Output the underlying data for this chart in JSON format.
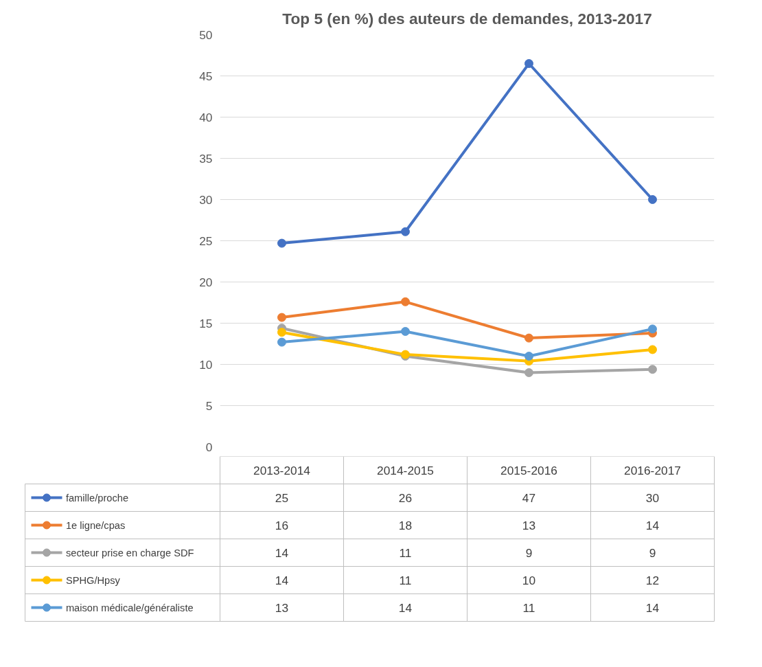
{
  "chart_data": {
    "type": "line",
    "title": "Top 5 (en %) des auteurs de demandes, 2013-2017",
    "categories": [
      "2013-2014",
      "2014-2015",
      "2015-2016",
      "2016-2017"
    ],
    "series": [
      {
        "name": "famille/proche",
        "color": "#4472c4",
        "values": [
          24.7,
          26.1,
          46.5,
          30.0
        ],
        "value_labels": [
          "25",
          "26",
          "47",
          "30"
        ]
      },
      {
        "name": "1e ligne/cpas",
        "color": "#ed7d31",
        "values": [
          15.7,
          17.6,
          13.2,
          13.8
        ],
        "value_labels": [
          "16",
          "18",
          "13",
          "14"
        ]
      },
      {
        "name": "secteur prise en charge SDF",
        "color": "#a5a5a5",
        "values": [
          14.4,
          11.0,
          9.0,
          9.4
        ],
        "value_labels": [
          "14",
          "11",
          "9",
          "9"
        ]
      },
      {
        "name": "SPHG/Hpsy",
        "color": "#ffc000",
        "values": [
          13.9,
          11.2,
          10.4,
          11.8
        ],
        "value_labels": [
          "14",
          "11",
          "10",
          "12"
        ]
      },
      {
        "name": "maison médicale/généraliste",
        "color": "#5b9bd5",
        "values": [
          12.7,
          14.0,
          11.0,
          14.3
        ],
        "value_labels": [
          "13",
          "14",
          "11",
          "14"
        ]
      }
    ],
    "ylim": [
      0,
      50
    ],
    "yticks": [
      0,
      5,
      10,
      15,
      20,
      25,
      30,
      35,
      40,
      45,
      50
    ],
    "grid": "y",
    "legend": "bottom",
    "marker": "circle",
    "line_style": "solid"
  }
}
